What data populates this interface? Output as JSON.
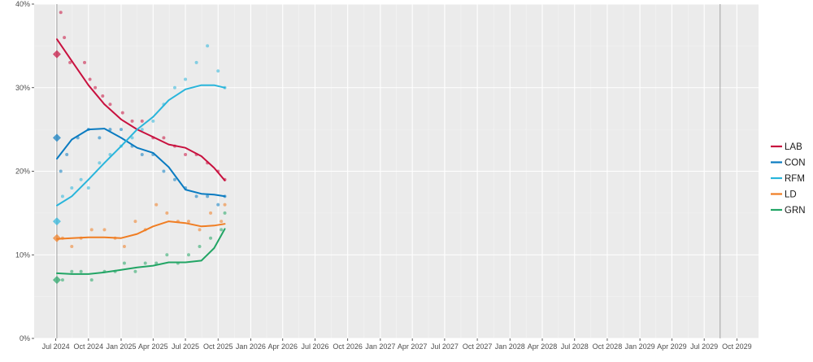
{
  "chart_data": {
    "type": "scatter",
    "title": "",
    "xlabel": "",
    "ylabel": "",
    "xlim": [
      "2024-05-01",
      "2029-12-01"
    ],
    "ylim": [
      0,
      40
    ],
    "grid": true,
    "legend_position": "right",
    "x_ticks": [
      "Jul 2024",
      "Oct 2024",
      "Jan 2025",
      "Apr 2025",
      "Jul 2025",
      "Oct 2025",
      "Jan 2026",
      "Apr 2026",
      "Jul 2026",
      "Oct 2026",
      "Jan 2027",
      "Apr 2027",
      "Jul 2027",
      "Oct 2027",
      "Jan 2028",
      "Apr 2028",
      "Jul 2028",
      "Oct 2028",
      "Jan 2029",
      "Apr 2029",
      "Jul 2029",
      "Oct 2029"
    ],
    "x_tick_dates": [
      "2024-07-01",
      "2024-10-01",
      "2025-01-01",
      "2025-04-01",
      "2025-07-01",
      "2025-10-01",
      "2026-01-01",
      "2026-04-01",
      "2026-07-01",
      "2026-10-01",
      "2027-01-01",
      "2027-04-01",
      "2027-07-01",
      "2027-10-01",
      "2028-01-01",
      "2028-04-01",
      "2028-07-01",
      "2028-10-01",
      "2029-01-01",
      "2029-04-01",
      "2029-07-01",
      "2029-10-01"
    ],
    "y_ticks": [
      "0%",
      "10%",
      "20%",
      "30%",
      "40%"
    ],
    "y_tick_values": [
      0,
      10,
      20,
      30,
      40
    ],
    "vlines": [
      "2024-07-04",
      "2029-08-15"
    ],
    "series": [
      {
        "name": "LAB",
        "color": "#c8103e",
        "result": {
          "date": "2024-07-04",
          "value": 34
        },
        "trend": [
          [
            "2024-07-04",
            35.8
          ],
          [
            "2024-08-15",
            33.2
          ],
          [
            "2024-10-01",
            30.3
          ],
          [
            "2024-11-15",
            28.0
          ],
          [
            "2025-01-01",
            26.2
          ],
          [
            "2025-02-15",
            25.0
          ],
          [
            "2025-04-01",
            24.1
          ],
          [
            "2025-05-15",
            23.2
          ],
          [
            "2025-07-01",
            22.8
          ],
          [
            "2025-08-15",
            21.8
          ],
          [
            "2025-09-20",
            20.4
          ],
          [
            "2025-10-20",
            18.9
          ]
        ],
        "points": [
          [
            "2024-07-15",
            39
          ],
          [
            "2024-07-25",
            36
          ],
          [
            "2024-08-10",
            33
          ],
          [
            "2024-09-20",
            33
          ],
          [
            "2024-10-05",
            31
          ],
          [
            "2024-10-20",
            30
          ],
          [
            "2024-11-10",
            29
          ],
          [
            "2024-12-01",
            28
          ],
          [
            "2025-01-05",
            27
          ],
          [
            "2025-02-01",
            26
          ],
          [
            "2025-03-01",
            26
          ],
          [
            "2025-04-01",
            24
          ],
          [
            "2025-05-01",
            24
          ],
          [
            "2025-06-01",
            23
          ],
          [
            "2025-07-01",
            22
          ],
          [
            "2025-08-01",
            22
          ],
          [
            "2025-09-01",
            21
          ],
          [
            "2025-10-01",
            20
          ],
          [
            "2025-10-20",
            19
          ]
        ]
      },
      {
        "name": "CON",
        "color": "#0a7bc1",
        "result": {
          "date": "2024-07-04",
          "value": 24
        },
        "trend": [
          [
            "2024-07-04",
            21.5
          ],
          [
            "2024-08-15",
            23.8
          ],
          [
            "2024-10-01",
            25.0
          ],
          [
            "2024-11-15",
            25.1
          ],
          [
            "2025-01-01",
            24.0
          ],
          [
            "2025-02-15",
            22.8
          ],
          [
            "2025-04-01",
            22.2
          ],
          [
            "2025-05-15",
            20.5
          ],
          [
            "2025-07-01",
            17.8
          ],
          [
            "2025-08-15",
            17.3
          ],
          [
            "2025-09-20",
            17.2
          ],
          [
            "2025-10-20",
            17.0
          ]
        ],
        "points": [
          [
            "2024-07-15",
            20
          ],
          [
            "2024-08-01",
            22
          ],
          [
            "2024-09-01",
            24
          ],
          [
            "2024-10-01",
            25
          ],
          [
            "2024-11-01",
            24
          ],
          [
            "2024-12-01",
            25
          ],
          [
            "2025-01-01",
            25
          ],
          [
            "2025-02-01",
            23
          ],
          [
            "2025-03-01",
            22
          ],
          [
            "2025-04-01",
            22
          ],
          [
            "2025-05-01",
            20
          ],
          [
            "2025-06-01",
            19
          ],
          [
            "2025-07-01",
            18
          ],
          [
            "2025-08-01",
            17
          ],
          [
            "2025-09-01",
            17
          ],
          [
            "2025-10-01",
            16
          ],
          [
            "2025-10-20",
            17
          ]
        ]
      },
      {
        "name": "RFM",
        "color": "#29b5db",
        "result": {
          "date": "2024-07-04",
          "value": 14
        },
        "trend": [
          [
            "2024-07-04",
            15.9
          ],
          [
            "2024-08-15",
            17.0
          ],
          [
            "2024-10-01",
            19.0
          ],
          [
            "2024-11-15",
            21.0
          ],
          [
            "2025-01-01",
            23.0
          ],
          [
            "2025-02-15",
            25.0
          ],
          [
            "2025-04-01",
            26.5
          ],
          [
            "2025-05-15",
            28.5
          ],
          [
            "2025-07-01",
            29.8
          ],
          [
            "2025-08-15",
            30.3
          ],
          [
            "2025-09-20",
            30.3
          ],
          [
            "2025-10-20",
            30.0
          ]
        ],
        "points": [
          [
            "2024-07-20",
            17
          ],
          [
            "2024-08-15",
            18
          ],
          [
            "2024-09-10",
            19
          ],
          [
            "2024-10-01",
            18
          ],
          [
            "2024-11-01",
            21
          ],
          [
            "2024-12-01",
            22
          ],
          [
            "2025-01-01",
            23
          ],
          [
            "2025-02-01",
            24
          ],
          [
            "2025-03-01",
            25
          ],
          [
            "2025-04-01",
            26
          ],
          [
            "2025-05-01",
            28
          ],
          [
            "2025-06-01",
            30
          ],
          [
            "2025-07-01",
            31
          ],
          [
            "2025-08-01",
            33
          ],
          [
            "2025-09-01",
            35
          ],
          [
            "2025-10-01",
            32
          ],
          [
            "2025-10-20",
            30
          ]
        ]
      },
      {
        "name": "LD",
        "color": "#f07d22",
        "result": {
          "date": "2024-07-04",
          "value": 12
        },
        "trend": [
          [
            "2024-07-04",
            11.9
          ],
          [
            "2024-08-15",
            12.0
          ],
          [
            "2024-10-01",
            12.1
          ],
          [
            "2024-11-15",
            12.1
          ],
          [
            "2025-01-01",
            12.0
          ],
          [
            "2025-02-15",
            12.5
          ],
          [
            "2025-04-01",
            13.4
          ],
          [
            "2025-05-15",
            14.0
          ],
          [
            "2025-07-01",
            13.8
          ],
          [
            "2025-08-15",
            13.4
          ],
          [
            "2025-09-20",
            13.5
          ],
          [
            "2025-10-20",
            13.7
          ]
        ],
        "points": [
          [
            "2024-07-20",
            12
          ],
          [
            "2024-08-15",
            11
          ],
          [
            "2024-09-10",
            12
          ],
          [
            "2024-10-10",
            13
          ],
          [
            "2024-11-15",
            13
          ],
          [
            "2024-12-15",
            12
          ],
          [
            "2025-01-10",
            11
          ],
          [
            "2025-02-10",
            14
          ],
          [
            "2025-03-10",
            13
          ],
          [
            "2025-04-10",
            16
          ],
          [
            "2025-05-10",
            15
          ],
          [
            "2025-06-10",
            14
          ],
          [
            "2025-07-10",
            14
          ],
          [
            "2025-08-10",
            13
          ],
          [
            "2025-09-10",
            15
          ],
          [
            "2025-10-10",
            14
          ],
          [
            "2025-10-20",
            16
          ]
        ]
      },
      {
        "name": "GRN",
        "color": "#22a565",
        "result": {
          "date": "2024-07-04",
          "value": 7
        },
        "trend": [
          [
            "2024-07-04",
            7.8
          ],
          [
            "2024-08-15",
            7.7
          ],
          [
            "2024-10-01",
            7.7
          ],
          [
            "2024-11-15",
            7.9
          ],
          [
            "2025-01-01",
            8.2
          ],
          [
            "2025-02-15",
            8.5
          ],
          [
            "2025-04-01",
            8.7
          ],
          [
            "2025-05-15",
            9.1
          ],
          [
            "2025-07-01",
            9.1
          ],
          [
            "2025-08-15",
            9.3
          ],
          [
            "2025-09-20",
            10.8
          ],
          [
            "2025-10-20",
            13.1
          ]
        ],
        "points": [
          [
            "2024-07-20",
            7
          ],
          [
            "2024-08-15",
            8
          ],
          [
            "2024-09-10",
            8
          ],
          [
            "2024-10-10",
            7
          ],
          [
            "2024-11-15",
            8
          ],
          [
            "2024-12-15",
            8
          ],
          [
            "2025-01-10",
            9
          ],
          [
            "2025-02-10",
            8
          ],
          [
            "2025-03-10",
            9
          ],
          [
            "2025-04-10",
            9
          ],
          [
            "2025-05-10",
            10
          ],
          [
            "2025-06-10",
            9
          ],
          [
            "2025-07-10",
            10
          ],
          [
            "2025-08-10",
            11
          ],
          [
            "2025-09-10",
            12
          ],
          [
            "2025-10-10",
            13
          ],
          [
            "2025-10-20",
            15
          ]
        ]
      }
    ]
  }
}
